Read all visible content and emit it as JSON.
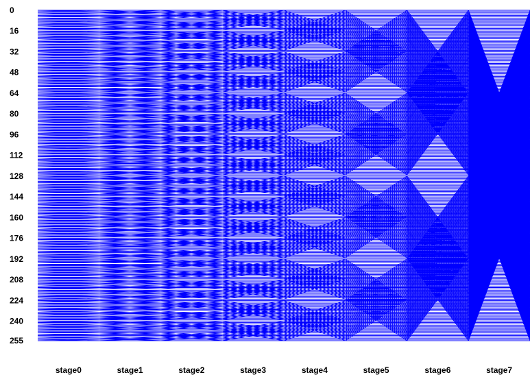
{
  "chart_data": {
    "type": "diagram",
    "description_kind": "butterfly-network",
    "y_ticks": [
      "0",
      "16",
      "32",
      "48",
      "64",
      "80",
      "96",
      "112",
      "128",
      "144",
      "160",
      "176",
      "192",
      "208",
      "224",
      "240",
      "255"
    ],
    "lines": 256,
    "stages": [
      "stage0",
      "stage1",
      "stage2",
      "stage3",
      "stage4",
      "stage5",
      "stage6",
      "stage7"
    ],
    "stage_spans": [
      2,
      4,
      8,
      16,
      32,
      64,
      128,
      256
    ],
    "line_color": "#0000ff",
    "background": "#ffffff"
  }
}
